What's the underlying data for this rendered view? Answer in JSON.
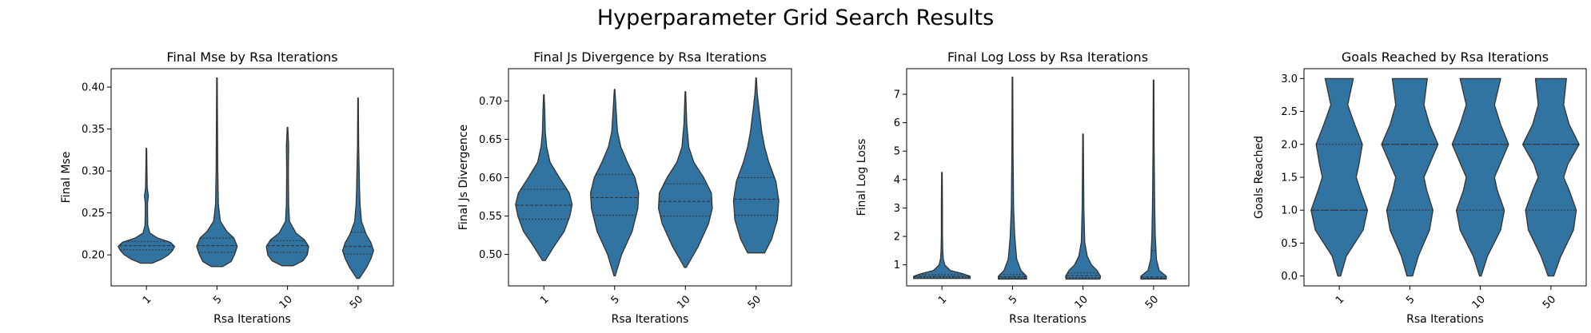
{
  "figure_title": "Hyperparameter Grid Search Results",
  "colors": {
    "violin_fill": "#3274a1",
    "violin_edge": "#333333",
    "axis": "#000000",
    "background": "#ffffff"
  },
  "chart_data": [
    {
      "type": "violin",
      "title": "Final Mse by Rsa Iterations",
      "xlabel": "Rsa Iterations",
      "ylabel": "Final Mse",
      "categories": [
        "1",
        "5",
        "10",
        "50"
      ],
      "ylim": [
        0.163,
        0.422
      ],
      "yticks": [
        0.2,
        0.25,
        0.3,
        0.35,
        0.4
      ],
      "ytick_labels": [
        "0.20",
        "0.25",
        "0.30",
        "0.35",
        "0.40"
      ],
      "violins": [
        {
          "min": 0.19,
          "max": 0.327,
          "quartiles": [
            0.206,
            0.211,
            0.216
          ],
          "profile": [
            [
              0.19,
              0.2
            ],
            [
              0.195,
              0.55
            ],
            [
              0.2,
              0.78
            ],
            [
              0.205,
              0.92
            ],
            [
              0.21,
              1.0
            ],
            [
              0.215,
              0.85
            ],
            [
              0.22,
              0.4
            ],
            [
              0.226,
              0.12
            ],
            [
              0.235,
              0.05
            ],
            [
              0.25,
              0.04
            ],
            [
              0.262,
              0.04
            ],
            [
              0.27,
              0.07
            ],
            [
              0.28,
              0.03
            ],
            [
              0.3,
              0.02
            ],
            [
              0.327,
              0.01
            ]
          ]
        },
        {
          "min": 0.186,
          "max": 0.411,
          "quartiles": [
            0.203,
            0.211,
            0.22
          ],
          "profile": [
            [
              0.186,
              0.2
            ],
            [
              0.192,
              0.5
            ],
            [
              0.2,
              0.62
            ],
            [
              0.21,
              0.72
            ],
            [
              0.22,
              0.6
            ],
            [
              0.228,
              0.35
            ],
            [
              0.24,
              0.12
            ],
            [
              0.26,
              0.05
            ],
            [
              0.3,
              0.03
            ],
            [
              0.35,
              0.02
            ],
            [
              0.411,
              0.01
            ]
          ]
        },
        {
          "min": 0.187,
          "max": 0.352,
          "quartiles": [
            0.203,
            0.211,
            0.217
          ],
          "profile": [
            [
              0.187,
              0.2
            ],
            [
              0.193,
              0.55
            ],
            [
              0.2,
              0.7
            ],
            [
              0.21,
              0.75
            ],
            [
              0.218,
              0.6
            ],
            [
              0.226,
              0.3
            ],
            [
              0.24,
              0.07
            ],
            [
              0.26,
              0.04
            ],
            [
              0.3,
              0.03
            ],
            [
              0.33,
              0.04
            ],
            [
              0.352,
              0.01
            ]
          ]
        },
        {
          "min": 0.172,
          "max": 0.387,
          "quartiles": [
            0.201,
            0.21,
            0.227
          ],
          "profile": [
            [
              0.172,
              0.05
            ],
            [
              0.185,
              0.3
            ],
            [
              0.195,
              0.45
            ],
            [
              0.205,
              0.55
            ],
            [
              0.215,
              0.45
            ],
            [
              0.225,
              0.28
            ],
            [
              0.24,
              0.12
            ],
            [
              0.26,
              0.07
            ],
            [
              0.28,
              0.05
            ],
            [
              0.3,
              0.04
            ],
            [
              0.33,
              0.02
            ],
            [
              0.387,
              0.01
            ]
          ]
        }
      ]
    },
    {
      "type": "violin",
      "title": "Final Js Divergence by Rsa Iterations",
      "xlabel": "Rsa Iterations",
      "ylabel": "Final Js Divergence",
      "categories": [
        "1",
        "5",
        "10",
        "50"
      ],
      "ylim": [
        0.459,
        0.742
      ],
      "yticks": [
        0.5,
        0.55,
        0.6,
        0.65,
        0.7
      ],
      "ytick_labels": [
        "0.50",
        "0.55",
        "0.60",
        "0.65",
        "0.70"
      ],
      "violins": [
        {
          "min": 0.492,
          "max": 0.708,
          "quartiles": [
            0.546,
            0.564,
            0.585
          ],
          "profile": [
            [
              0.492,
              0.05
            ],
            [
              0.51,
              0.35
            ],
            [
              0.53,
              0.72
            ],
            [
              0.55,
              0.92
            ],
            [
              0.565,
              1.0
            ],
            [
              0.58,
              0.9
            ],
            [
              0.6,
              0.55
            ],
            [
              0.62,
              0.22
            ],
            [
              0.64,
              0.1
            ],
            [
              0.66,
              0.05
            ],
            [
              0.69,
              0.03
            ],
            [
              0.708,
              0.01
            ]
          ]
        },
        {
          "min": 0.472,
          "max": 0.715,
          "quartiles": [
            0.551,
            0.574,
            0.604
          ],
          "profile": [
            [
              0.472,
              0.02
            ],
            [
              0.5,
              0.25
            ],
            [
              0.53,
              0.62
            ],
            [
              0.56,
              0.82
            ],
            [
              0.58,
              0.85
            ],
            [
              0.6,
              0.72
            ],
            [
              0.62,
              0.45
            ],
            [
              0.64,
              0.22
            ],
            [
              0.66,
              0.1
            ],
            [
              0.69,
              0.05
            ],
            [
              0.715,
              0.01
            ]
          ]
        },
        {
          "min": 0.483,
          "max": 0.712,
          "quartiles": [
            0.55,
            0.569,
            0.592
          ],
          "profile": [
            [
              0.483,
              0.03
            ],
            [
              0.51,
              0.45
            ],
            [
              0.54,
              0.82
            ],
            [
              0.56,
              0.95
            ],
            [
              0.58,
              0.92
            ],
            [
              0.6,
              0.65
            ],
            [
              0.62,
              0.3
            ],
            [
              0.64,
              0.12
            ],
            [
              0.67,
              0.05
            ],
            [
              0.712,
              0.01
            ]
          ]
        },
        {
          "min": 0.502,
          "max": 0.73,
          "quartiles": [
            0.551,
            0.572,
            0.6
          ],
          "profile": [
            [
              0.502,
              0.3
            ],
            [
              0.52,
              0.55
            ],
            [
              0.545,
              0.75
            ],
            [
              0.57,
              0.8
            ],
            [
              0.595,
              0.7
            ],
            [
              0.62,
              0.45
            ],
            [
              0.64,
              0.3
            ],
            [
              0.66,
              0.2
            ],
            [
              0.69,
              0.1
            ],
            [
              0.71,
              0.04
            ],
            [
              0.73,
              0.01
            ]
          ]
        }
      ]
    },
    {
      "type": "violin",
      "title": "Final Log Loss by Rsa Iterations",
      "xlabel": "Rsa Iterations",
      "ylabel": "Final Log Loss",
      "categories": [
        "1",
        "5",
        "10",
        "50"
      ],
      "ylim": [
        0.26,
        7.9
      ],
      "yticks": [
        1,
        2,
        3,
        4,
        5,
        6,
        7
      ],
      "ytick_labels": [
        "1",
        "2",
        "3",
        "4",
        "5",
        "6",
        "7"
      ],
      "violins": [
        {
          "min": 0.52,
          "max": 4.25,
          "quartiles": [
            0.56,
            0.6,
            0.66
          ],
          "profile": [
            [
              0.52,
              1.0
            ],
            [
              0.6,
              1.0
            ],
            [
              0.7,
              0.7
            ],
            [
              0.8,
              0.3
            ],
            [
              1.0,
              0.1
            ],
            [
              1.2,
              0.05
            ],
            [
              1.5,
              0.03
            ],
            [
              2.0,
              0.02
            ],
            [
              3.0,
              0.02
            ],
            [
              4.25,
              0.01
            ]
          ]
        },
        {
          "min": 0.5,
          "max": 7.6,
          "quartiles": [
            0.54,
            0.58,
            0.66
          ],
          "profile": [
            [
              0.5,
              0.5
            ],
            [
              0.6,
              0.5
            ],
            [
              0.8,
              0.3
            ],
            [
              1.2,
              0.15
            ],
            [
              2.0,
              0.08
            ],
            [
              3.0,
              0.04
            ],
            [
              5.0,
              0.02
            ],
            [
              7.6,
              0.01
            ]
          ]
        },
        {
          "min": 0.5,
          "max": 5.6,
          "quartiles": [
            0.55,
            0.62,
            0.72
          ],
          "profile": [
            [
              0.5,
              0.6
            ],
            [
              0.6,
              0.62
            ],
            [
              0.8,
              0.5
            ],
            [
              1.0,
              0.3
            ],
            [
              1.3,
              0.15
            ],
            [
              1.8,
              0.06
            ],
            [
              3.0,
              0.03
            ],
            [
              5.6,
              0.01
            ]
          ]
        },
        {
          "min": 0.5,
          "max": 7.5,
          "quartiles": [
            0.53,
            0.57,
            1.5
          ],
          "profile": [
            [
              0.5,
              0.45
            ],
            [
              0.6,
              0.45
            ],
            [
              0.8,
              0.2
            ],
            [
              1.2,
              0.1
            ],
            [
              2.0,
              0.06
            ],
            [
              3.0,
              0.04
            ],
            [
              5.0,
              0.02
            ],
            [
              7.5,
              0.01
            ]
          ]
        }
      ]
    },
    {
      "type": "violin",
      "title": "Goals Reached by Rsa Iterations",
      "xlabel": "Rsa Iterations",
      "ylabel": "Goals Reached",
      "categories": [
        "1",
        "5",
        "10",
        "50"
      ],
      "ylim": [
        -0.15,
        3.15
      ],
      "yticks": [
        0.0,
        0.5,
        1.0,
        1.5,
        2.0,
        2.5,
        3.0
      ],
      "ytick_labels": [
        "0.0",
        "0.5",
        "1.0",
        "1.5",
        "2.0",
        "2.5",
        "3.0"
      ],
      "violins": [
        {
          "min": 0.0,
          "max": 3.0,
          "quartiles": [
            1.0,
            1.0,
            2.0
          ],
          "profile": [
            [
              0.0,
              0.05
            ],
            [
              0.3,
              0.25
            ],
            [
              0.7,
              0.85
            ],
            [
              1.0,
              1.0
            ],
            [
              1.3,
              0.75
            ],
            [
              1.5,
              0.6
            ],
            [
              1.7,
              0.7
            ],
            [
              2.0,
              0.82
            ],
            [
              2.3,
              0.55
            ],
            [
              2.6,
              0.3
            ],
            [
              3.0,
              0.5
            ]
          ]
        },
        {
          "min": 0.0,
          "max": 3.0,
          "quartiles": [
            1.0,
            2.0,
            2.0
          ],
          "profile": [
            [
              0.0,
              0.1
            ],
            [
              0.3,
              0.3
            ],
            [
              0.7,
              0.7
            ],
            [
              1.0,
              0.82
            ],
            [
              1.3,
              0.6
            ],
            [
              1.5,
              0.5
            ],
            [
              1.7,
              0.7
            ],
            [
              2.0,
              1.0
            ],
            [
              2.3,
              0.7
            ],
            [
              2.6,
              0.5
            ],
            [
              3.0,
              0.62
            ]
          ]
        },
        {
          "min": 0.0,
          "max": 3.0,
          "quartiles": [
            1.0,
            2.0,
            2.0
          ],
          "profile": [
            [
              0.0,
              0.03
            ],
            [
              0.3,
              0.25
            ],
            [
              0.7,
              0.72
            ],
            [
              1.0,
              0.85
            ],
            [
              1.3,
              0.6
            ],
            [
              1.5,
              0.5
            ],
            [
              1.7,
              0.7
            ],
            [
              2.0,
              1.0
            ],
            [
              2.3,
              0.72
            ],
            [
              2.6,
              0.5
            ],
            [
              3.0,
              0.72
            ]
          ]
        },
        {
          "min": 0.0,
          "max": 3.0,
          "quartiles": [
            1.0,
            2.0,
            2.0
          ],
          "profile": [
            [
              0.0,
              0.1
            ],
            [
              0.3,
              0.35
            ],
            [
              0.7,
              0.8
            ],
            [
              1.0,
              0.9
            ],
            [
              1.3,
              0.65
            ],
            [
              1.5,
              0.45
            ],
            [
              1.7,
              0.6
            ],
            [
              2.0,
              1.0
            ],
            [
              2.3,
              0.65
            ],
            [
              2.6,
              0.45
            ],
            [
              3.0,
              0.55
            ]
          ]
        }
      ]
    }
  ]
}
